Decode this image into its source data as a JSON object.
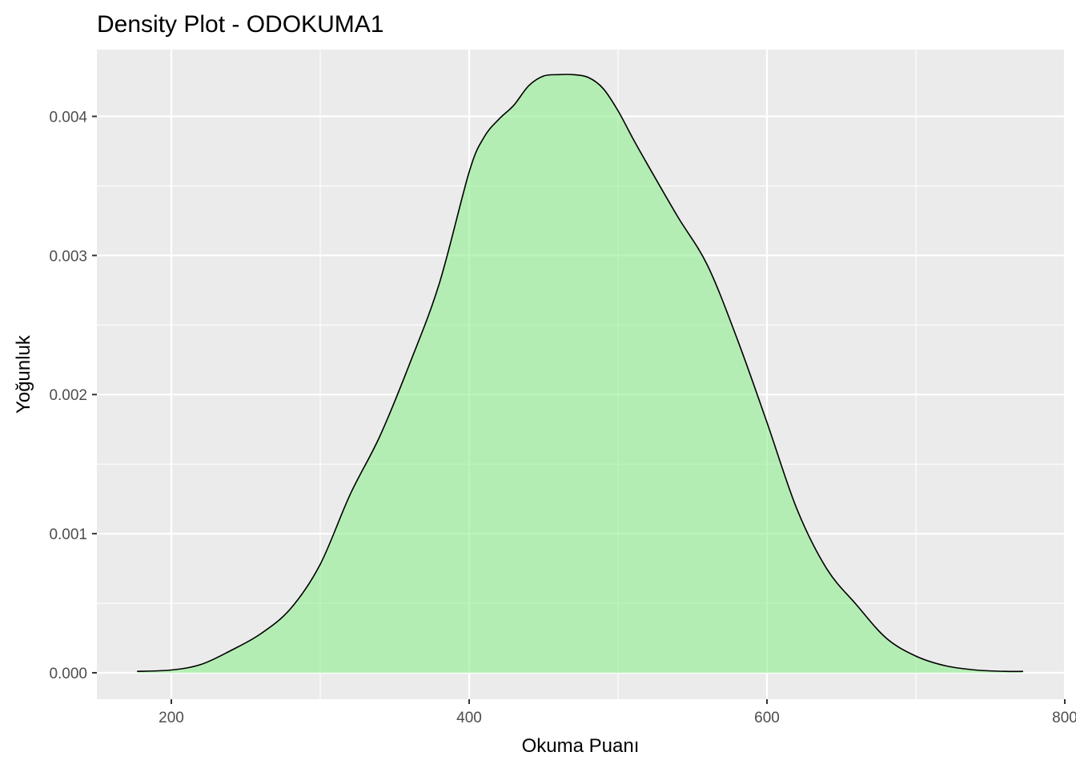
{
  "chart_data": {
    "type": "area",
    "title": "Density Plot - ODOKUMA1",
    "xlabel": "Okuma Puanı",
    "ylabel": "Yoğunluk",
    "xlim": [
      150,
      800
    ],
    "ylim": [
      -0.00019,
      0.00448
    ],
    "x_ticks": [
      {
        "value": 200,
        "label": "200"
      },
      {
        "value": 400,
        "label": "400"
      },
      {
        "value": 600,
        "label": "600"
      },
      {
        "value": 800,
        "label": "800"
      }
    ],
    "y_ticks": [
      {
        "value": 0.0,
        "label": "0.000"
      },
      {
        "value": 0.001,
        "label": "0.001"
      },
      {
        "value": 0.002,
        "label": "0.002"
      },
      {
        "value": 0.003,
        "label": "0.003"
      },
      {
        "value": 0.004,
        "label": "0.004"
      }
    ],
    "x_minor_gridlines": [
      300,
      500,
      700
    ],
    "y_minor_gridlines": [
      0.0005,
      0.0015,
      0.0025,
      0.0035
    ],
    "grid": true,
    "fill_color": "#90EE90",
    "fill_alpha": 0.6,
    "line_color": "#000000",
    "panel_background": "#EBEBEB",
    "series": [
      {
        "x": [
          177,
          200,
          220,
          240,
          260,
          280,
          300,
          320,
          340,
          360,
          380,
          400,
          410,
          420,
          430,
          440,
          450,
          460,
          470,
          480,
          490,
          500,
          510,
          520,
          540,
          560,
          580,
          600,
          620,
          640,
          660,
          680,
          700,
          720,
          740,
          760,
          772
        ],
        "y": [
          1e-05,
          2e-05,
          6e-05,
          0.00016,
          0.00028,
          0.00046,
          0.00078,
          0.00128,
          0.0017,
          0.00222,
          0.0028,
          0.0036,
          0.00385,
          0.00398,
          0.00408,
          0.00422,
          0.00429,
          0.0043,
          0.0043,
          0.00428,
          0.0042,
          0.00404,
          0.00384,
          0.00365,
          0.00328,
          0.00293,
          0.0024,
          0.0018,
          0.00118,
          0.00075,
          0.00049,
          0.00025,
          0.00012,
          5e-05,
          2e-05,
          1e-05,
          1e-05
        ]
      }
    ]
  }
}
